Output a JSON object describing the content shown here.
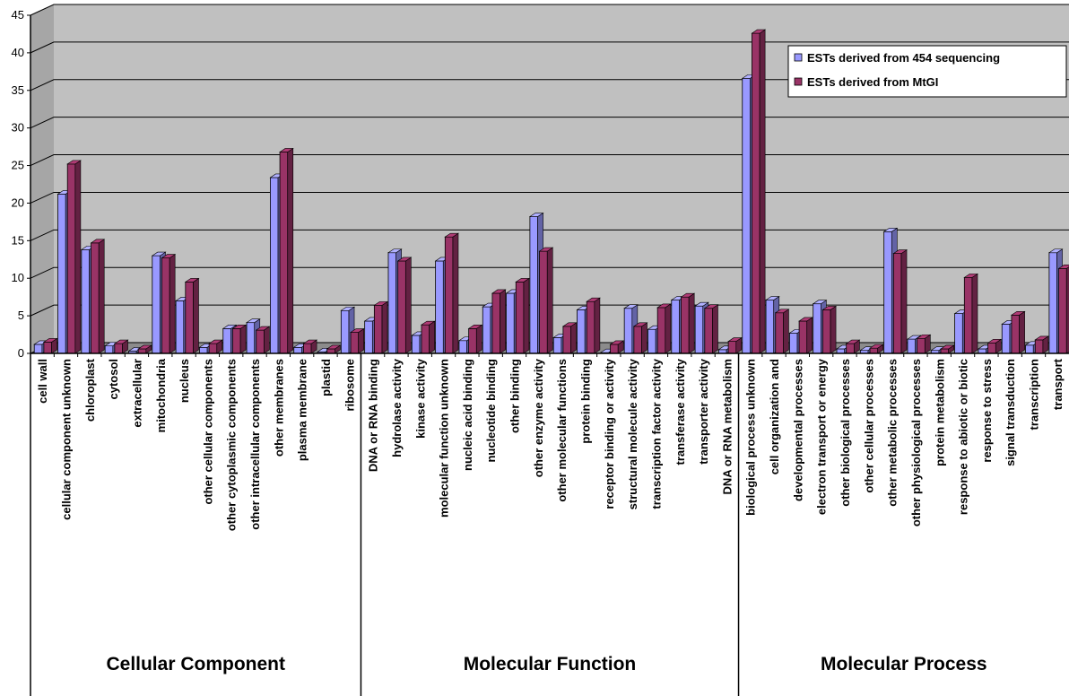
{
  "chart_data": {
    "type": "bar",
    "ylim": [
      0,
      45
    ],
    "yticks": [
      0,
      5,
      10,
      15,
      20,
      25,
      30,
      35,
      40,
      45
    ],
    "grid": true,
    "legend_position": "top-right",
    "colors": {
      "plot_bg": "#c0c0c0",
      "series1": "#9999ff",
      "series2": "#993366",
      "grid": "#000000"
    },
    "categories": [
      "cell wall",
      "cellular component unknown",
      "chloroplast",
      "cytosol",
      "extracellular",
      "mitochondria",
      "nucleus",
      "other cellular components",
      "other cytoplasmic components",
      "other intracellular components",
      "other membranes",
      "plasma membrane",
      "plastid",
      "ribosome",
      "DNA or RNA binding",
      "hydrolase activity",
      "kinase activity",
      "molecular function unknown",
      "nucleic acid binding",
      "nucleotide binding",
      "other binding",
      "other enzyme activity",
      "other molecular functions",
      "protein binding",
      "receptor binding or activity",
      "structural molecule activity",
      "transcription factor activity",
      "transferase activity",
      "transporter activity",
      "DNA or RNA metabolism",
      "biological process unknown",
      "cell organization and",
      "developmental processes",
      "electron transport or energy",
      "other biological processes",
      "other cellular processes",
      "other metabolic processes",
      "other physiological processes",
      "protein metabolism",
      "response to abiotic or biotic",
      "response to stress",
      "signal transduction",
      "transcription",
      "transport"
    ],
    "series": [
      {
        "name": "ESTs derived from 454 sequencing",
        "values": [
          1.2,
          21.2,
          13.8,
          1.0,
          0.3,
          13.0,
          7.0,
          0.8,
          3.3,
          4.1,
          23.4,
          0.8,
          0.2,
          5.7,
          4.3,
          13.4,
          2.4,
          12.3,
          1.7,
          6.2,
          8.0,
          18.2,
          2.1,
          5.8,
          0.1,
          6.0,
          3.2,
          7.1,
          6.3,
          0.5,
          36.6,
          7.1,
          2.7,
          6.6,
          0.6,
          0.4,
          16.2,
          1.9,
          0.4,
          5.3,
          0.6,
          3.9,
          1.1,
          13.4
        ]
      },
      {
        "name": "ESTs derived from MtGI",
        "values": [
          1.5,
          25.2,
          14.7,
          1.3,
          0.6,
          12.7,
          9.5,
          1.3,
          3.3,
          3.1,
          26.8,
          1.3,
          0.6,
          2.8,
          6.4,
          12.3,
          3.8,
          15.5,
          3.3,
          8.0,
          9.5,
          13.6,
          3.6,
          6.9,
          1.2,
          3.6,
          6.1,
          7.5,
          6.0,
          1.6,
          42.6,
          5.4,
          4.3,
          5.8,
          1.3,
          0.7,
          13.3,
          2.0,
          0.6,
          10.1,
          1.4,
          5.1,
          1.8,
          11.3
        ]
      }
    ],
    "groups": [
      {
        "label": "Cellular Component",
        "start": 0,
        "end": 13
      },
      {
        "label": "Molecular Function",
        "start": 14,
        "end": 29
      },
      {
        "label": "Molecular Process",
        "start": 30,
        "end": 43
      }
    ]
  }
}
